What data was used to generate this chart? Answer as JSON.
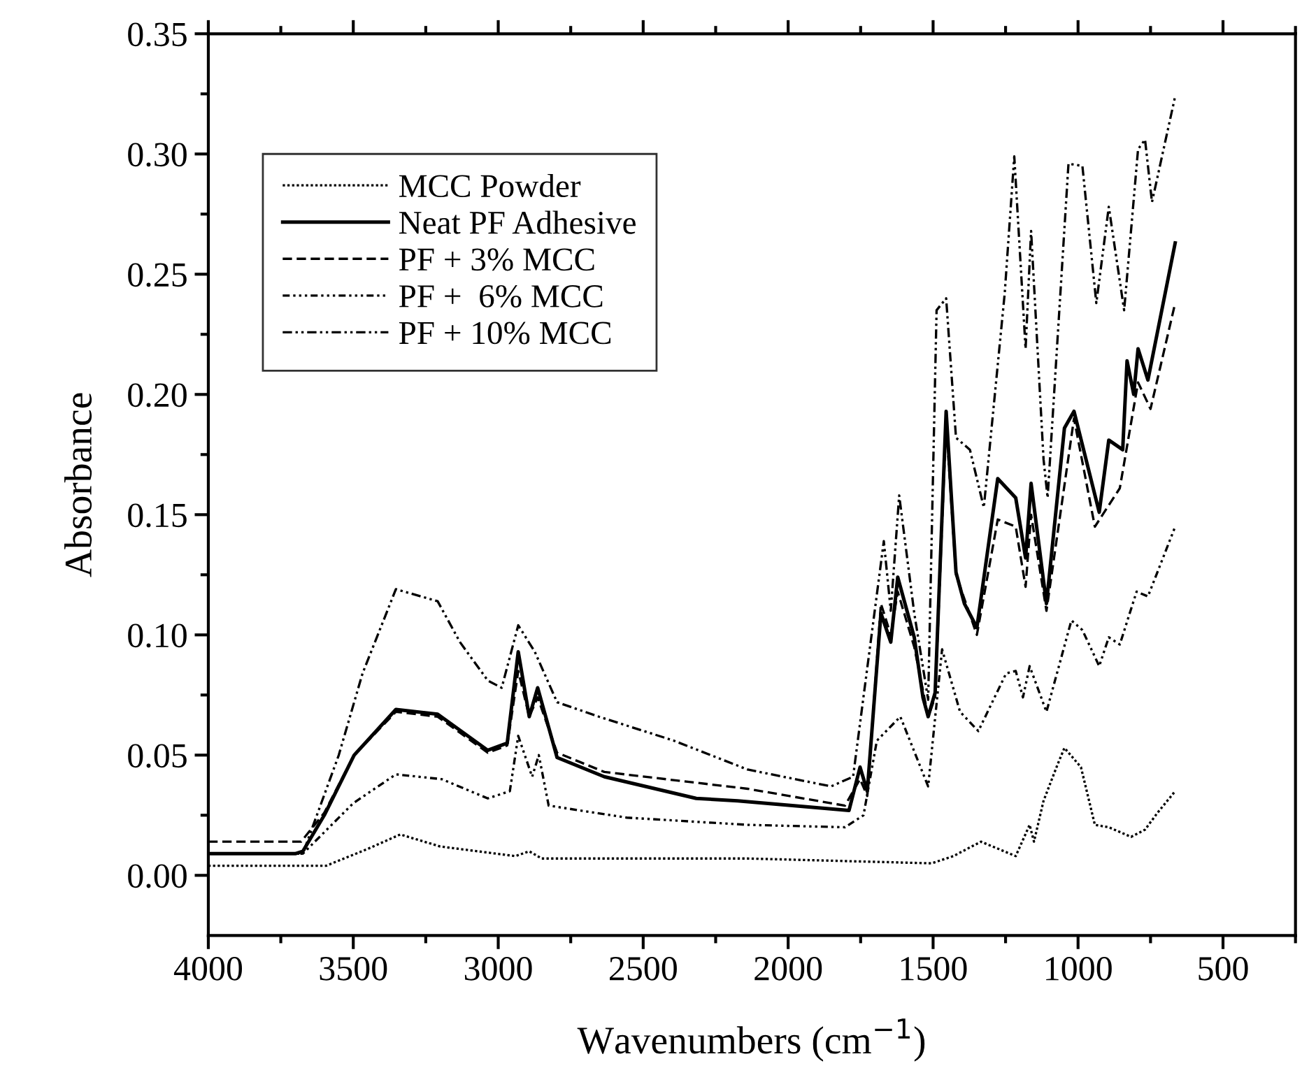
{
  "chart_data": {
    "type": "line",
    "xlabel": "Wavenumbers (cm$^{−1}$)",
    "ylabel": "Absorbance",
    "xlim": [
      4000,
      250
    ],
    "ylim": [
      -0.025,
      0.35
    ],
    "xticks": [
      4000,
      {
        "value": 3750,
        "label": null
      },
      3500,
      {
        "value": 3250,
        "label": null
      },
      3000,
      {
        "value": 2750,
        "label": null
      },
      2500,
      {
        "value": 2250,
        "label": null
      },
      2000,
      {
        "value": 1750,
        "label": null
      },
      1500,
      {
        "value": 1250,
        "label": null
      },
      1000,
      {
        "value": 750,
        "label": null
      },
      500,
      {
        "value": 250,
        "label": null
      }
    ],
    "yticks": [
      {
        "value": 0.0,
        "label": "0.00"
      },
      {
        "value": 0.025,
        "label": null
      },
      0.05,
      {
        "value": 0.075,
        "label": null
      },
      {
        "value": 0.1,
        "label": "0.10"
      },
      {
        "value": 0.125,
        "label": null
      },
      0.15,
      {
        "value": 0.175,
        "label": null
      },
      {
        "value": 0.2,
        "label": "0.20"
      },
      {
        "value": 0.225,
        "label": null
      },
      0.25,
      {
        "value": 0.275,
        "label": null
      },
      {
        "value": 0.3,
        "label": "0.30"
      },
      {
        "value": 0.325,
        "label": null
      },
      0.35
    ],
    "grid": false,
    "legend": "top left",
    "marker": "none",
    "series": [
      {
        "name": "MCC Powder",
        "color": "#000000",
        "line_style": "dotted",
        "x": [
          4000,
          3593,
          3450,
          3338,
          3200,
          2941,
          2893,
          2850,
          2140,
          1505,
          1430,
          1335,
          1215,
          1167,
          1152,
          1119,
          1071,
          1047,
          990,
          942,
          894,
          817,
          769,
          726,
          665
        ],
        "values": [
          0.004,
          0.004,
          0.011,
          0.017,
          0.012,
          0.008,
          0.01,
          0.007,
          0.007,
          0.005,
          0.008,
          0.014,
          0.008,
          0.021,
          0.014,
          0.031,
          0.046,
          0.053,
          0.045,
          0.021,
          0.02,
          0.016,
          0.019,
          0.026,
          0.035
        ]
      },
      {
        "name": "Neat PF Adhesive",
        "color": "#000000",
        "line_style": "solid",
        "x": [
          4000,
          3700,
          3674,
          3600,
          3497,
          3353,
          3209,
          3036,
          2969,
          2931,
          2893,
          2864,
          2797,
          2634,
          2317,
          2174,
          1790,
          1752,
          1727,
          1680,
          1646,
          1622,
          1565,
          1535,
          1517,
          1493,
          1455,
          1421,
          1392,
          1349,
          1277,
          1215,
          1181,
          1162,
          1109,
          1047,
          1014,
          927,
          894,
          846,
          831,
          808,
          793,
          759,
          665
        ],
        "values": [
          0.009,
          0.009,
          0.01,
          0.025,
          0.05,
          0.069,
          0.067,
          0.052,
          0.055,
          0.093,
          0.066,
          0.078,
          0.049,
          0.041,
          0.032,
          0.031,
          0.027,
          0.045,
          0.035,
          0.109,
          0.097,
          0.124,
          0.099,
          0.074,
          0.066,
          0.076,
          0.193,
          0.126,
          0.113,
          0.103,
          0.165,
          0.157,
          0.132,
          0.163,
          0.113,
          0.186,
          0.193,
          0.151,
          0.181,
          0.177,
          0.214,
          0.2,
          0.219,
          0.206,
          0.263
        ]
      },
      {
        "name": "PF + 3% MCC",
        "color": "#000000",
        "line_style": "dashed",
        "x": [
          4000,
          3680,
          3600,
          3497,
          3353,
          3209,
          3036,
          2969,
          2931,
          2893,
          2864,
          2797,
          2634,
          2140,
          1804,
          1752,
          1727,
          1680,
          1646,
          1622,
          1565,
          1517,
          1493,
          1455,
          1421,
          1349,
          1277,
          1215,
          1181,
          1162,
          1109,
          1014,
          942,
          856,
          793,
          750,
          665
        ],
        "values": [
          0.014,
          0.014,
          0.026,
          0.05,
          0.068,
          0.066,
          0.051,
          0.054,
          0.085,
          0.066,
          0.074,
          0.051,
          0.043,
          0.036,
          0.029,
          0.04,
          0.033,
          0.113,
          0.1,
          0.118,
          0.095,
          0.066,
          0.074,
          0.188,
          0.125,
          0.1,
          0.148,
          0.145,
          0.12,
          0.15,
          0.11,
          0.19,
          0.145,
          0.161,
          0.205,
          0.194,
          0.238
        ]
      },
      {
        "name": "PF +  6% MCC",
        "color": "#000000",
        "line_style": "dashdotdot",
        "x": [
          4000,
          3674,
          3500,
          3353,
          3195,
          3036,
          2960,
          2931,
          2883,
          2860,
          2826,
          2557,
          2140,
          1804,
          1740,
          1694,
          1613,
          1517,
          1469,
          1407,
          1344,
          1248,
          1215,
          1190,
          1167,
          1109,
          1023,
          985,
          927,
          894,
          856,
          798,
          759,
          665
        ],
        "values": [
          0.009,
          0.009,
          0.03,
          0.042,
          0.04,
          0.032,
          0.035,
          0.058,
          0.041,
          0.05,
          0.029,
          0.024,
          0.021,
          0.02,
          0.025,
          0.056,
          0.066,
          0.037,
          0.094,
          0.068,
          0.06,
          0.084,
          0.085,
          0.074,
          0.087,
          0.068,
          0.106,
          0.102,
          0.087,
          0.099,
          0.096,
          0.118,
          0.116,
          0.145
        ]
      },
      {
        "name": "PF + 10% MCC",
        "color": "#000000",
        "line_style": "dashdot",
        "x": [
          4000,
          3674,
          3550,
          3468,
          3353,
          3209,
          3132,
          3036,
          2988,
          2931,
          2874,
          2797,
          2653,
          2394,
          2140,
          1852,
          1776,
          1670,
          1646,
          1617,
          1565,
          1517,
          1488,
          1455,
          1421,
          1373,
          1325,
          1253,
          1220,
          1181,
          1162,
          1119,
          1105,
          1033,
          985,
          937,
          894,
          841,
          793,
          769,
          745,
          665
        ],
        "values": [
          0.009,
          0.009,
          0.05,
          0.084,
          0.119,
          0.114,
          0.097,
          0.081,
          0.078,
          0.104,
          0.093,
          0.072,
          0.066,
          0.056,
          0.044,
          0.037,
          0.041,
          0.139,
          0.11,
          0.158,
          0.109,
          0.073,
          0.235,
          0.24,
          0.182,
          0.177,
          0.153,
          0.242,
          0.299,
          0.219,
          0.268,
          0.173,
          0.157,
          0.296,
          0.295,
          0.238,
          0.278,
          0.235,
          0.302,
          0.306,
          0.28,
          0.324
        ]
      }
    ]
  }
}
